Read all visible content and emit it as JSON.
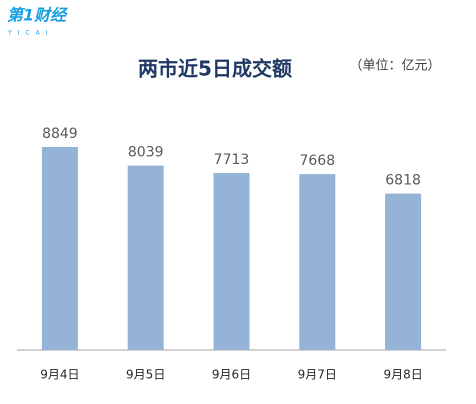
{
  "logo": {
    "name": "第1财经",
    "sub": "YICAI"
  },
  "chart_data": {
    "type": "bar",
    "title": "两市近5日成交额",
    "subtitle": "（单位：亿元）",
    "categories": [
      "9月4日",
      "9月5日",
      "9月6日",
      "9月7日",
      "9月8日"
    ],
    "values": [
      8849,
      8039,
      7713,
      7668,
      6818
    ],
    "color": "#95b3d7",
    "ylim": [
      0,
      10000
    ]
  }
}
